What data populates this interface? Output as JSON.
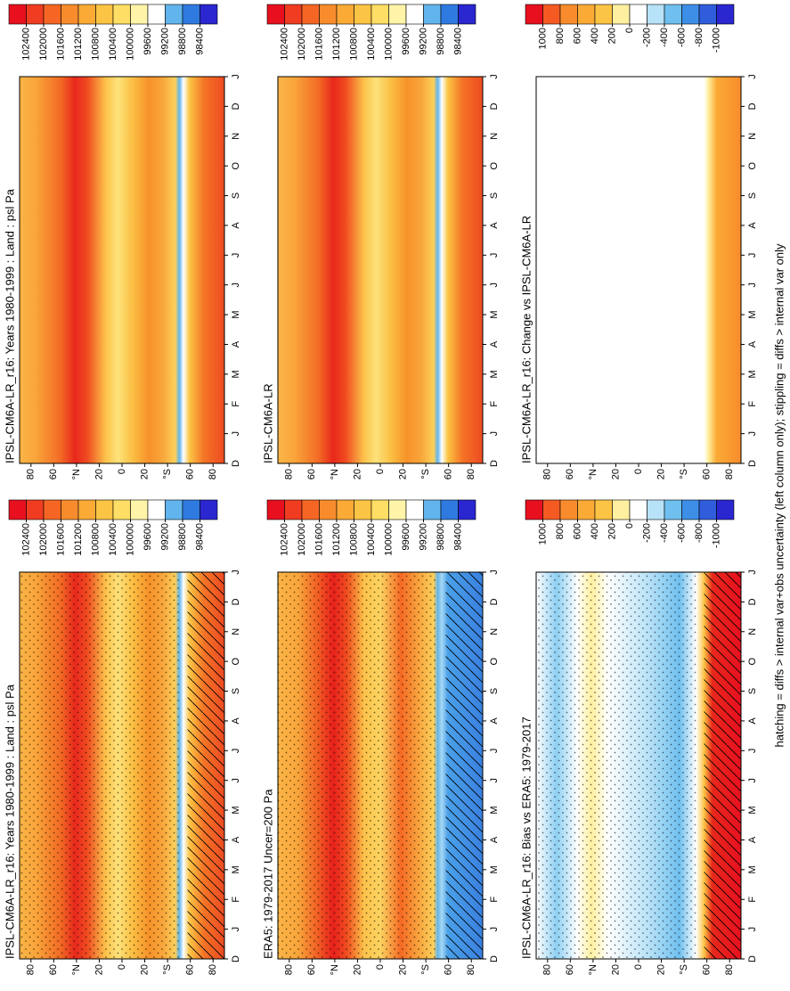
{
  "chart_data": [
    {
      "type": "contour",
      "title": "IPSL-CM6A-LR_r16: Years 1980-1999 : Land : psl Pa",
      "categories": [
        "D",
        "J",
        "F",
        "M",
        "A",
        "M",
        "J",
        "J",
        "A",
        "S",
        "O",
        "N",
        "D",
        "J"
      ],
      "ylim": [
        -90,
        90
      ],
      "yticks": [
        80,
        60,
        {
          "value": 40,
          "label": "°N"
        },
        20,
        0,
        {
          "value": -20,
          "label": "20"
        },
        {
          "value": -40,
          "label": "°S"
        },
        {
          "value": -60,
          "label": "60"
        },
        {
          "value": -80,
          "label": "80"
        }
      ],
      "colorbar": {
        "ticks": [
          102400,
          102000,
          101600,
          101200,
          100800,
          100400,
          100000,
          99600,
          99200,
          98800,
          98400
        ],
        "colors": [
          "#e8101e",
          "#f03c20",
          "#f56624",
          "#f88c2c",
          "#fbaa36",
          "#fcc444",
          "#fede64",
          "#fff4a8",
          "#ffffff",
          "#62b4ec",
          "#2f7ae0",
          "#2a26d0"
        ]
      }
    },
    {
      "type": "contour",
      "title": "IPSL-CM6A-LR_r16: Years 1980-1999 : Land : psl Pa",
      "categories": [
        "D",
        "J",
        "F",
        "M",
        "A",
        "M",
        "J",
        "J",
        "A",
        "S",
        "O",
        "N",
        "D",
        "J"
      ],
      "ylim": [
        -90,
        90
      ],
      "yticks": [
        80,
        60,
        {
          "value": 40,
          "label": "°N"
        },
        20,
        0,
        {
          "value": -20,
          "label": "20"
        },
        {
          "value": -40,
          "label": "°S"
        },
        {
          "value": -60,
          "label": "60"
        },
        {
          "value": -80,
          "label": "80"
        }
      ],
      "colorbar": {
        "ticks": [
          102400,
          102000,
          101600,
          101200,
          100800,
          100400,
          100000,
          99600,
          99200,
          98800,
          98400
        ],
        "colors": [
          "#e8101e",
          "#f03c20",
          "#f56624",
          "#f88c2c",
          "#fbaa36",
          "#fcc444",
          "#fede64",
          "#fff4a8",
          "#ffffff",
          "#62b4ec",
          "#2f7ae0",
          "#2a26d0"
        ]
      }
    },
    {
      "type": "contour",
      "title": "ERA5: 1979-2017 Uncer=200 Pa",
      "categories": [
        "D",
        "J",
        "F",
        "M",
        "A",
        "M",
        "J",
        "J",
        "A",
        "S",
        "O",
        "N",
        "D",
        "J"
      ],
      "ylim": [
        -90,
        90
      ],
      "yticks": [
        80,
        60,
        {
          "value": 40,
          "label": "°N"
        },
        20,
        0,
        {
          "value": -20,
          "label": "20"
        },
        {
          "value": -40,
          "label": "°S"
        },
        {
          "value": -60,
          "label": "60"
        },
        {
          "value": -80,
          "label": "80"
        }
      ],
      "colorbar": {
        "ticks": [
          102400,
          102000,
          101600,
          101200,
          100800,
          100400,
          100000,
          99600,
          99200,
          98800,
          98400
        ],
        "colors": [
          "#e8101e",
          "#f03c20",
          "#f56624",
          "#f88c2c",
          "#fbaa36",
          "#fcc444",
          "#fede64",
          "#fff4a8",
          "#ffffff",
          "#62b4ec",
          "#2f7ae0",
          "#2a26d0"
        ]
      }
    },
    {
      "type": "contour",
      "title": "IPSL-CM6A-LR",
      "categories": [
        "D",
        "J",
        "F",
        "M",
        "A",
        "M",
        "J",
        "J",
        "A",
        "S",
        "O",
        "N",
        "D",
        "J"
      ],
      "ylim": [
        -90,
        90
      ],
      "yticks": [
        80,
        60,
        {
          "value": 40,
          "label": "°N"
        },
        20,
        0,
        {
          "value": -20,
          "label": "20"
        },
        {
          "value": -40,
          "label": "°S"
        },
        {
          "value": -60,
          "label": "60"
        },
        {
          "value": -80,
          "label": "80"
        }
      ],
      "colorbar": {
        "ticks": [
          102400,
          102000,
          101600,
          101200,
          100800,
          100400,
          100000,
          99600,
          99200,
          98800,
          98400
        ],
        "colors": [
          "#e8101e",
          "#f03c20",
          "#f56624",
          "#f88c2c",
          "#fbaa36",
          "#fcc444",
          "#fede64",
          "#fff4a8",
          "#ffffff",
          "#62b4ec",
          "#2f7ae0",
          "#2a26d0"
        ]
      }
    },
    {
      "type": "contour",
      "title": "IPSL-CM6A-LR_r16: Bias vs ERA5: 1979-2017",
      "categories": [
        "D",
        "J",
        "F",
        "M",
        "A",
        "M",
        "J",
        "J",
        "A",
        "S",
        "O",
        "N",
        "D",
        "J"
      ],
      "ylim": [
        -90,
        90
      ],
      "yticks": [
        80,
        60,
        {
          "value": 40,
          "label": "°N"
        },
        20,
        0,
        {
          "value": -20,
          "label": "20"
        },
        {
          "value": -40,
          "label": "°S"
        },
        {
          "value": -60,
          "label": "60"
        },
        {
          "value": -80,
          "label": "80"
        }
      ],
      "colorbar": {
        "ticks": [
          1000,
          800,
          600,
          400,
          200,
          0,
          -200,
          -400,
          -600,
          -800,
          -1000
        ],
        "colors": [
          "#e8101e",
          "#f45a22",
          "#f88c2c",
          "#fbaa36",
          "#fcc444",
          "#fff0a0",
          "#ffffff",
          "#b8e2f8",
          "#6fc0ef",
          "#3d8ee6",
          "#2f5ddc",
          "#2a26d0"
        ]
      }
    },
    {
      "type": "contour",
      "title": "IPSL-CM6A-LR_r16: Change vs IPSL-CM6A-LR",
      "categories": [
        "D",
        "J",
        "F",
        "M",
        "A",
        "M",
        "J",
        "J",
        "A",
        "S",
        "O",
        "N",
        "D",
        "J"
      ],
      "ylim": [
        -90,
        90
      ],
      "yticks": [
        80,
        60,
        {
          "value": 40,
          "label": "°N"
        },
        20,
        0,
        {
          "value": -20,
          "label": "20"
        },
        {
          "value": -40,
          "label": "°S"
        },
        {
          "value": -60,
          "label": "60"
        },
        {
          "value": -80,
          "label": "80"
        }
      ],
      "colorbar": {
        "ticks": [
          1000,
          800,
          600,
          400,
          200,
          0,
          -200,
          -400,
          -600,
          -800,
          -1000
        ],
        "colors": [
          "#e8101e",
          "#f45a22",
          "#f88c2c",
          "#fbaa36",
          "#fcc444",
          "#fff0a0",
          "#ffffff",
          "#b8e2f8",
          "#6fc0ef",
          "#3d8ee6",
          "#2f5ddc",
          "#2a26d0"
        ]
      }
    }
  ],
  "footnote": "hatching = diffs > internal var+obs uncertainty (left column only); stippling = diffs > internal var only"
}
